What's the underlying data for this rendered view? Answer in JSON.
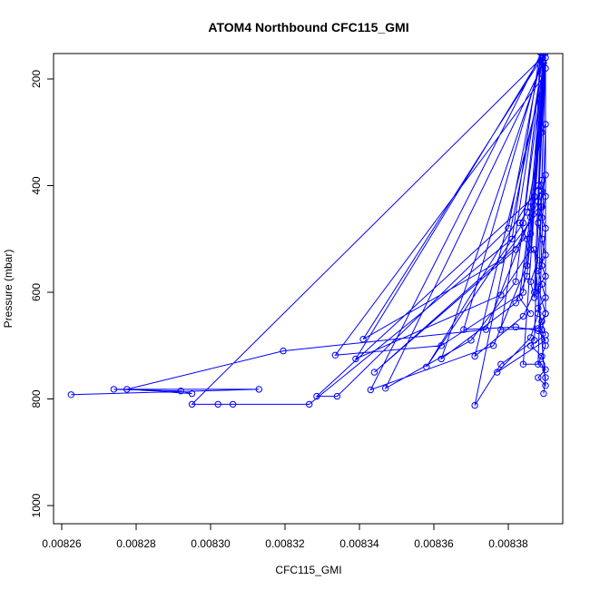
{
  "chart_data": {
    "type": "line",
    "title": "ATOM4 Northbound CFC115_GMI",
    "xlabel": "CFC115_GMI",
    "ylabel": "Pressure (mbar)",
    "xlim": [
      0.00826,
      0.00839
    ],
    "ylim": [
      1000,
      200
    ],
    "xticks": [
      0.00826,
      0.00828,
      0.0083,
      0.00832,
      0.00834,
      0.00836,
      0.00838
    ],
    "xtick_labels": [
      "0.00826",
      "0.00828",
      "0.00830",
      "0.00832",
      "0.00834",
      "0.00836",
      "0.00838"
    ],
    "yticks": [
      200,
      400,
      600,
      800,
      1000
    ],
    "ytick_labels": [
      "200",
      "400",
      "600",
      "800",
      "1000"
    ],
    "series": [
      {
        "color": "#0000ff",
        "marker": "open-circle",
        "points": [
          [
            0.0082625,
            792
          ],
          [
            0.008313,
            782
          ],
          [
            0.008274,
            782
          ],
          [
            0.008292,
            785
          ],
          [
            0.008295,
            790
          ],
          [
            0.0082775,
            782
          ],
          [
            0.0083195,
            710
          ],
          [
            0.008374,
            670
          ],
          [
            0.008386,
            460
          ],
          [
            0.00839,
            150
          ],
          [
            0.008388,
            430
          ],
          [
            0.008382,
            520
          ],
          [
            0.008344,
            750
          ],
          [
            0.008386,
            490
          ],
          [
            0.00839,
            150
          ],
          [
            0.008389,
            390
          ],
          [
            0.008358,
            740
          ],
          [
            0.008384,
            470
          ],
          [
            0.008389,
            160
          ],
          [
            0.008295,
            810
          ],
          [
            0.008302,
            810
          ],
          [
            0.008306,
            810
          ],
          [
            0.0083265,
            810
          ],
          [
            0.008381,
            500
          ],
          [
            0.0083885,
            150
          ],
          [
            0.008387,
            420
          ],
          [
            0.0083285,
            795
          ],
          [
            0.008334,
            795
          ],
          [
            0.00838,
            480
          ],
          [
            0.008389,
            150
          ],
          [
            0.008343,
            783
          ],
          [
            0.008376,
            700
          ],
          [
            0.008385,
            550
          ],
          [
            0.0083895,
            170
          ],
          [
            0.008347,
            780
          ],
          [
            0.00837,
            690
          ],
          [
            0.008382,
            580
          ],
          [
            0.008389,
            200
          ],
          [
            0.0083335,
            718
          ],
          [
            0.008362,
            700
          ],
          [
            0.008384,
            600
          ],
          [
            0.0083895,
            150
          ],
          [
            0.008339,
            725
          ],
          [
            0.008378,
            605
          ],
          [
            0.008386,
            520
          ],
          [
            0.00839,
            150
          ],
          [
            0.008341,
            688
          ],
          [
            0.008378,
            540
          ],
          [
            0.008388,
            450
          ],
          [
            0.00839,
            150
          ],
          [
            0.008362,
            725
          ],
          [
            0.008382,
            620
          ],
          [
            0.008385,
            570
          ],
          [
            0.00839,
            180
          ],
          [
            0.008371,
            720
          ],
          [
            0.008384,
            645
          ],
          [
            0.008387,
            600
          ],
          [
            0.0083895,
            150
          ],
          [
            0.008368,
            670
          ],
          [
            0.008382,
            665
          ],
          [
            0.008388,
            672
          ],
          [
            0.00839,
            690
          ],
          [
            0.008377,
            750
          ],
          [
            0.008386,
            685
          ],
          [
            0.008388,
            640
          ],
          [
            0.00839,
            160
          ],
          [
            0.008371,
            812
          ],
          [
            0.008378,
            735
          ],
          [
            0.008387,
            690
          ],
          [
            0.0083895,
            150
          ],
          [
            0.008378,
            670
          ],
          [
            0.008388,
            668
          ],
          [
            0.00839,
            640
          ],
          [
            0.00839,
            150
          ],
          [
            0.008384,
            735
          ],
          [
            0.008389,
            735
          ],
          [
            0.00839,
            760
          ],
          [
            0.0083895,
            790
          ]
        ]
      },
      {
        "color": "#0000ff",
        "marker": "open-circle",
        "points": [
          [
            0.008386,
            440
          ],
          [
            0.008389,
            410
          ],
          [
            0.00839,
            380
          ],
          [
            0.008388,
            470
          ],
          [
            0.008389,
            500
          ],
          [
            0.00839,
            530
          ],
          [
            0.008388,
            560
          ],
          [
            0.008389,
            585
          ],
          [
            0.00839,
            610
          ],
          [
            0.008388,
            630
          ],
          [
            0.008389,
            655
          ],
          [
            0.00839,
            680
          ],
          [
            0.008386,
            700
          ],
          [
            0.008389,
            720
          ],
          [
            0.00839,
            745
          ],
          [
            0.008388,
            760
          ],
          [
            0.00839,
            775
          ],
          [
            0.008387,
            520
          ],
          [
            0.008388,
            540
          ],
          [
            0.008386,
            580
          ],
          [
            0.008387,
            610
          ],
          [
            0.008389,
            440
          ],
          [
            0.008388,
            400
          ],
          [
            0.00839,
            420
          ],
          [
            0.008389,
            460
          ],
          [
            0.00839,
            480
          ],
          [
            0.008389,
            550
          ],
          [
            0.00839,
            570
          ],
          [
            0.008388,
            590
          ],
          [
            0.00839,
            640
          ],
          [
            0.008389,
            670
          ],
          [
            0.00839,
            700
          ],
          [
            0.008388,
            735
          ],
          [
            0.00839,
            285
          ],
          [
            0.008389,
            300
          ],
          [
            0.008385,
            450
          ],
          [
            0.008383,
            470
          ],
          [
            0.008385,
            500
          ],
          [
            0.008383,
            610
          ],
          [
            0.008386,
            640
          ]
        ]
      }
    ]
  }
}
